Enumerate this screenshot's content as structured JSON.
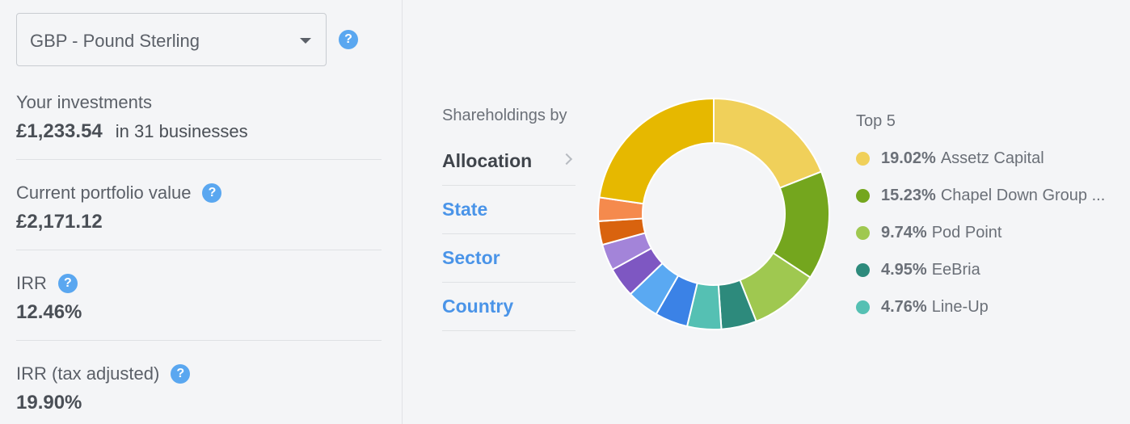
{
  "currency": {
    "selected": "GBP - Pound Sterling"
  },
  "help_glyph": "?",
  "stats": {
    "investments": {
      "label": "Your investments",
      "value": "£1,233.54",
      "sub": "in 31 businesses"
    },
    "portfolio": {
      "label": "Current portfolio value",
      "value": "£2,171.12"
    },
    "irr": {
      "label": "IRR",
      "value": "12.46%"
    },
    "irr_tax": {
      "label": "IRR (tax adjusted)",
      "value": "19.90%"
    }
  },
  "shareholdings": {
    "title": "Shareholdings by",
    "items": [
      {
        "label": "Allocation",
        "active": true
      },
      {
        "label": "State",
        "active": false
      },
      {
        "label": "Sector",
        "active": false
      },
      {
        "label": "Country",
        "active": false
      }
    ]
  },
  "top5": {
    "title": "Top 5",
    "items": [
      {
        "pct": "19.02%",
        "name": "Assetz Capital",
        "color": "#f0d05a"
      },
      {
        "pct": "15.23%",
        "name": "Chapel Down Group ...",
        "color": "#74a61e"
      },
      {
        "pct": "9.74%",
        "name": "Pod Point",
        "color": "#9fc850"
      },
      {
        "pct": "4.95%",
        "name": "EeBria",
        "color": "#2d8a7c"
      },
      {
        "pct": "4.76%",
        "name": "Line-Up",
        "color": "#55c0b3"
      }
    ]
  },
  "chart_data": {
    "type": "pie",
    "series": [
      {
        "value": 19.02,
        "color": "#f0d05a"
      },
      {
        "value": 15.23,
        "color": "#74a61e"
      },
      {
        "value": 9.74,
        "color": "#9fc850"
      },
      {
        "value": 4.95,
        "color": "#2d8a7c"
      },
      {
        "value": 4.76,
        "color": "#55c0b3"
      },
      {
        "value": 4.6,
        "color": "#3b82e6"
      },
      {
        "value": 4.5,
        "color": "#5aa9f2"
      },
      {
        "value": 4.2,
        "color": "#7e57c2"
      },
      {
        "value": 3.7,
        "color": "#a384d9"
      },
      {
        "value": 3.3,
        "color": "#d9630e"
      },
      {
        "value": 3.3,
        "color": "#f58a4d"
      },
      {
        "value": 22.69,
        "color": "#e6b800"
      }
    ]
  }
}
